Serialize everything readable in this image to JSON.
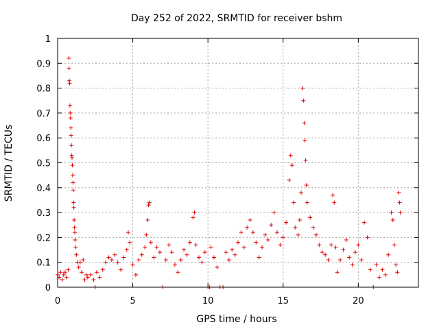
{
  "chart_data": {
    "type": "scatter",
    "title": "Day 252 of 2022, SRMTID for receiver bshm",
    "xlabel": "GPS time / hours",
    "ylabel": "SRMTID / TECUs",
    "xlim": [
      0,
      24
    ],
    "ylim": [
      0,
      1
    ],
    "xticks": [
      0,
      5,
      10,
      15,
      20
    ],
    "yticks": [
      0,
      0.1,
      0.2,
      0.3,
      0.4,
      0.5,
      0.6,
      0.7,
      0.8,
      0.9,
      1
    ],
    "ytick_labels": [
      "0",
      "0.1",
      "0.2",
      "0.3",
      "0.4",
      "0.5",
      "0.6",
      "0.7",
      "0.8",
      "0.9",
      "1"
    ],
    "grid": true,
    "marker": "+",
    "color": "#e00000",
    "series": [
      {
        "name": "SRMTID",
        "points": [
          [
            0.0,
            0.05
          ],
          [
            0.1,
            0.04
          ],
          [
            0.2,
            0.06
          ],
          [
            0.3,
            0.03
          ],
          [
            0.4,
            0.05
          ],
          [
            0.5,
            0.06
          ],
          [
            0.6,
            0.04
          ],
          [
            0.7,
            0.07
          ],
          [
            0.75,
            0.92
          ],
          [
            0.76,
            0.88
          ],
          [
            0.78,
            0.83
          ],
          [
            0.8,
            0.82
          ],
          [
            0.82,
            0.73
          ],
          [
            0.84,
            0.7
          ],
          [
            0.86,
            0.68
          ],
          [
            0.88,
            0.64
          ],
          [
            0.9,
            0.61
          ],
          [
            0.92,
            0.57
          ],
          [
            0.94,
            0.53
          ],
          [
            0.96,
            0.52
          ],
          [
            0.98,
            0.49
          ],
          [
            1.0,
            0.45
          ],
          [
            1.02,
            0.42
          ],
          [
            1.04,
            0.39
          ],
          [
            1.06,
            0.34
          ],
          [
            1.08,
            0.32
          ],
          [
            1.1,
            0.27
          ],
          [
            1.12,
            0.24
          ],
          [
            1.14,
            0.22
          ],
          [
            1.16,
            0.19
          ],
          [
            1.2,
            0.16
          ],
          [
            1.25,
            0.13
          ],
          [
            1.3,
            0.1
          ],
          [
            1.4,
            0.08
          ],
          [
            1.5,
            0.1
          ],
          [
            1.6,
            0.06
          ],
          [
            1.7,
            0.11
          ],
          [
            1.8,
            0.03
          ],
          [
            1.9,
            0.05
          ],
          [
            2.0,
            0.04
          ],
          [
            2.2,
            0.05
          ],
          [
            2.4,
            0.03
          ],
          [
            2.5,
            0.0
          ],
          [
            2.6,
            0.06
          ],
          [
            2.8,
            0.04
          ],
          [
            3.0,
            0.07
          ],
          [
            3.2,
            0.1
          ],
          [
            3.4,
            0.12
          ],
          [
            3.6,
            0.11
          ],
          [
            3.8,
            0.13
          ],
          [
            4.0,
            0.1
          ],
          [
            4.2,
            0.07
          ],
          [
            4.4,
            0.12
          ],
          [
            4.6,
            0.15
          ],
          [
            4.7,
            0.22
          ],
          [
            4.8,
            0.18
          ],
          [
            5.0,
            0.09
          ],
          [
            5.2,
            0.05
          ],
          [
            5.4,
            0.11
          ],
          [
            5.6,
            0.13
          ],
          [
            5.8,
            0.16
          ],
          [
            5.9,
            0.21
          ],
          [
            6.0,
            0.27
          ],
          [
            6.05,
            0.33
          ],
          [
            6.1,
            0.34
          ],
          [
            6.2,
            0.18
          ],
          [
            6.4,
            0.12
          ],
          [
            6.6,
            0.16
          ],
          [
            6.8,
            0.14
          ],
          [
            7.0,
            0.0
          ],
          [
            7.2,
            0.11
          ],
          [
            7.4,
            0.17
          ],
          [
            7.6,
            0.14
          ],
          [
            7.8,
            0.09
          ],
          [
            8.0,
            0.06
          ],
          [
            8.2,
            0.11
          ],
          [
            8.4,
            0.15
          ],
          [
            8.6,
            0.13
          ],
          [
            8.8,
            0.18
          ],
          [
            9.0,
            0.28
          ],
          [
            9.1,
            0.3
          ],
          [
            9.2,
            0.17
          ],
          [
            9.4,
            0.12
          ],
          [
            9.6,
            0.1
          ],
          [
            9.8,
            0.14
          ],
          [
            10.0,
            0.0
          ],
          [
            10.1,
            0.0
          ],
          [
            10.2,
            0.16
          ],
          [
            10.4,
            0.12
          ],
          [
            10.6,
            0.08
          ],
          [
            10.8,
            0.0
          ],
          [
            11.0,
            0.0
          ],
          [
            11.2,
            0.14
          ],
          [
            11.4,
            0.11
          ],
          [
            11.6,
            0.15
          ],
          [
            11.8,
            0.13
          ],
          [
            12.0,
            0.18
          ],
          [
            12.2,
            0.22
          ],
          [
            12.4,
            0.16
          ],
          [
            12.6,
            0.24
          ],
          [
            12.8,
            0.27
          ],
          [
            13.0,
            0.22
          ],
          [
            13.2,
            0.18
          ],
          [
            13.4,
            0.12
          ],
          [
            13.6,
            0.16
          ],
          [
            13.8,
            0.21
          ],
          [
            14.0,
            0.19
          ],
          [
            14.2,
            0.25
          ],
          [
            14.4,
            0.3
          ],
          [
            14.6,
            0.22
          ],
          [
            14.8,
            0.17
          ],
          [
            15.0,
            0.2
          ],
          [
            15.2,
            0.26
          ],
          [
            15.4,
            0.43
          ],
          [
            15.5,
            0.53
          ],
          [
            15.6,
            0.49
          ],
          [
            15.7,
            0.34
          ],
          [
            15.8,
            0.24
          ],
          [
            16.0,
            0.21
          ],
          [
            16.1,
            0.27
          ],
          [
            16.2,
            0.38
          ],
          [
            16.3,
            0.8
          ],
          [
            16.35,
            0.75
          ],
          [
            16.4,
            0.66
          ],
          [
            16.45,
            0.59
          ],
          [
            16.5,
            0.51
          ],
          [
            16.55,
            0.41
          ],
          [
            16.6,
            0.34
          ],
          [
            16.8,
            0.28
          ],
          [
            17.0,
            0.24
          ],
          [
            17.2,
            0.21
          ],
          [
            17.4,
            0.17
          ],
          [
            17.6,
            0.14
          ],
          [
            17.8,
            0.13
          ],
          [
            18.0,
            0.11
          ],
          [
            18.2,
            0.17
          ],
          [
            18.3,
            0.37
          ],
          [
            18.4,
            0.34
          ],
          [
            18.5,
            0.16
          ],
          [
            18.6,
            0.06
          ],
          [
            18.8,
            0.11
          ],
          [
            19.0,
            0.15
          ],
          [
            19.2,
            0.19
          ],
          [
            19.4,
            0.12
          ],
          [
            19.6,
            0.09
          ],
          [
            19.8,
            0.14
          ],
          [
            20.0,
            0.17
          ],
          [
            20.2,
            0.11
          ],
          [
            20.4,
            0.26
          ],
          [
            20.6,
            0.2
          ],
          [
            20.8,
            0.07
          ],
          [
            21.0,
            0.0
          ],
          [
            21.2,
            0.09
          ],
          [
            21.4,
            0.04
          ],
          [
            21.6,
            0.07
          ],
          [
            21.8,
            0.05
          ],
          [
            22.0,
            0.13
          ],
          [
            22.2,
            0.3
          ],
          [
            22.3,
            0.27
          ],
          [
            22.4,
            0.17
          ],
          [
            22.5,
            0.09
          ],
          [
            22.6,
            0.06
          ],
          [
            22.7,
            0.38
          ],
          [
            22.75,
            0.34
          ],
          [
            22.8,
            0.3
          ]
        ]
      }
    ]
  }
}
